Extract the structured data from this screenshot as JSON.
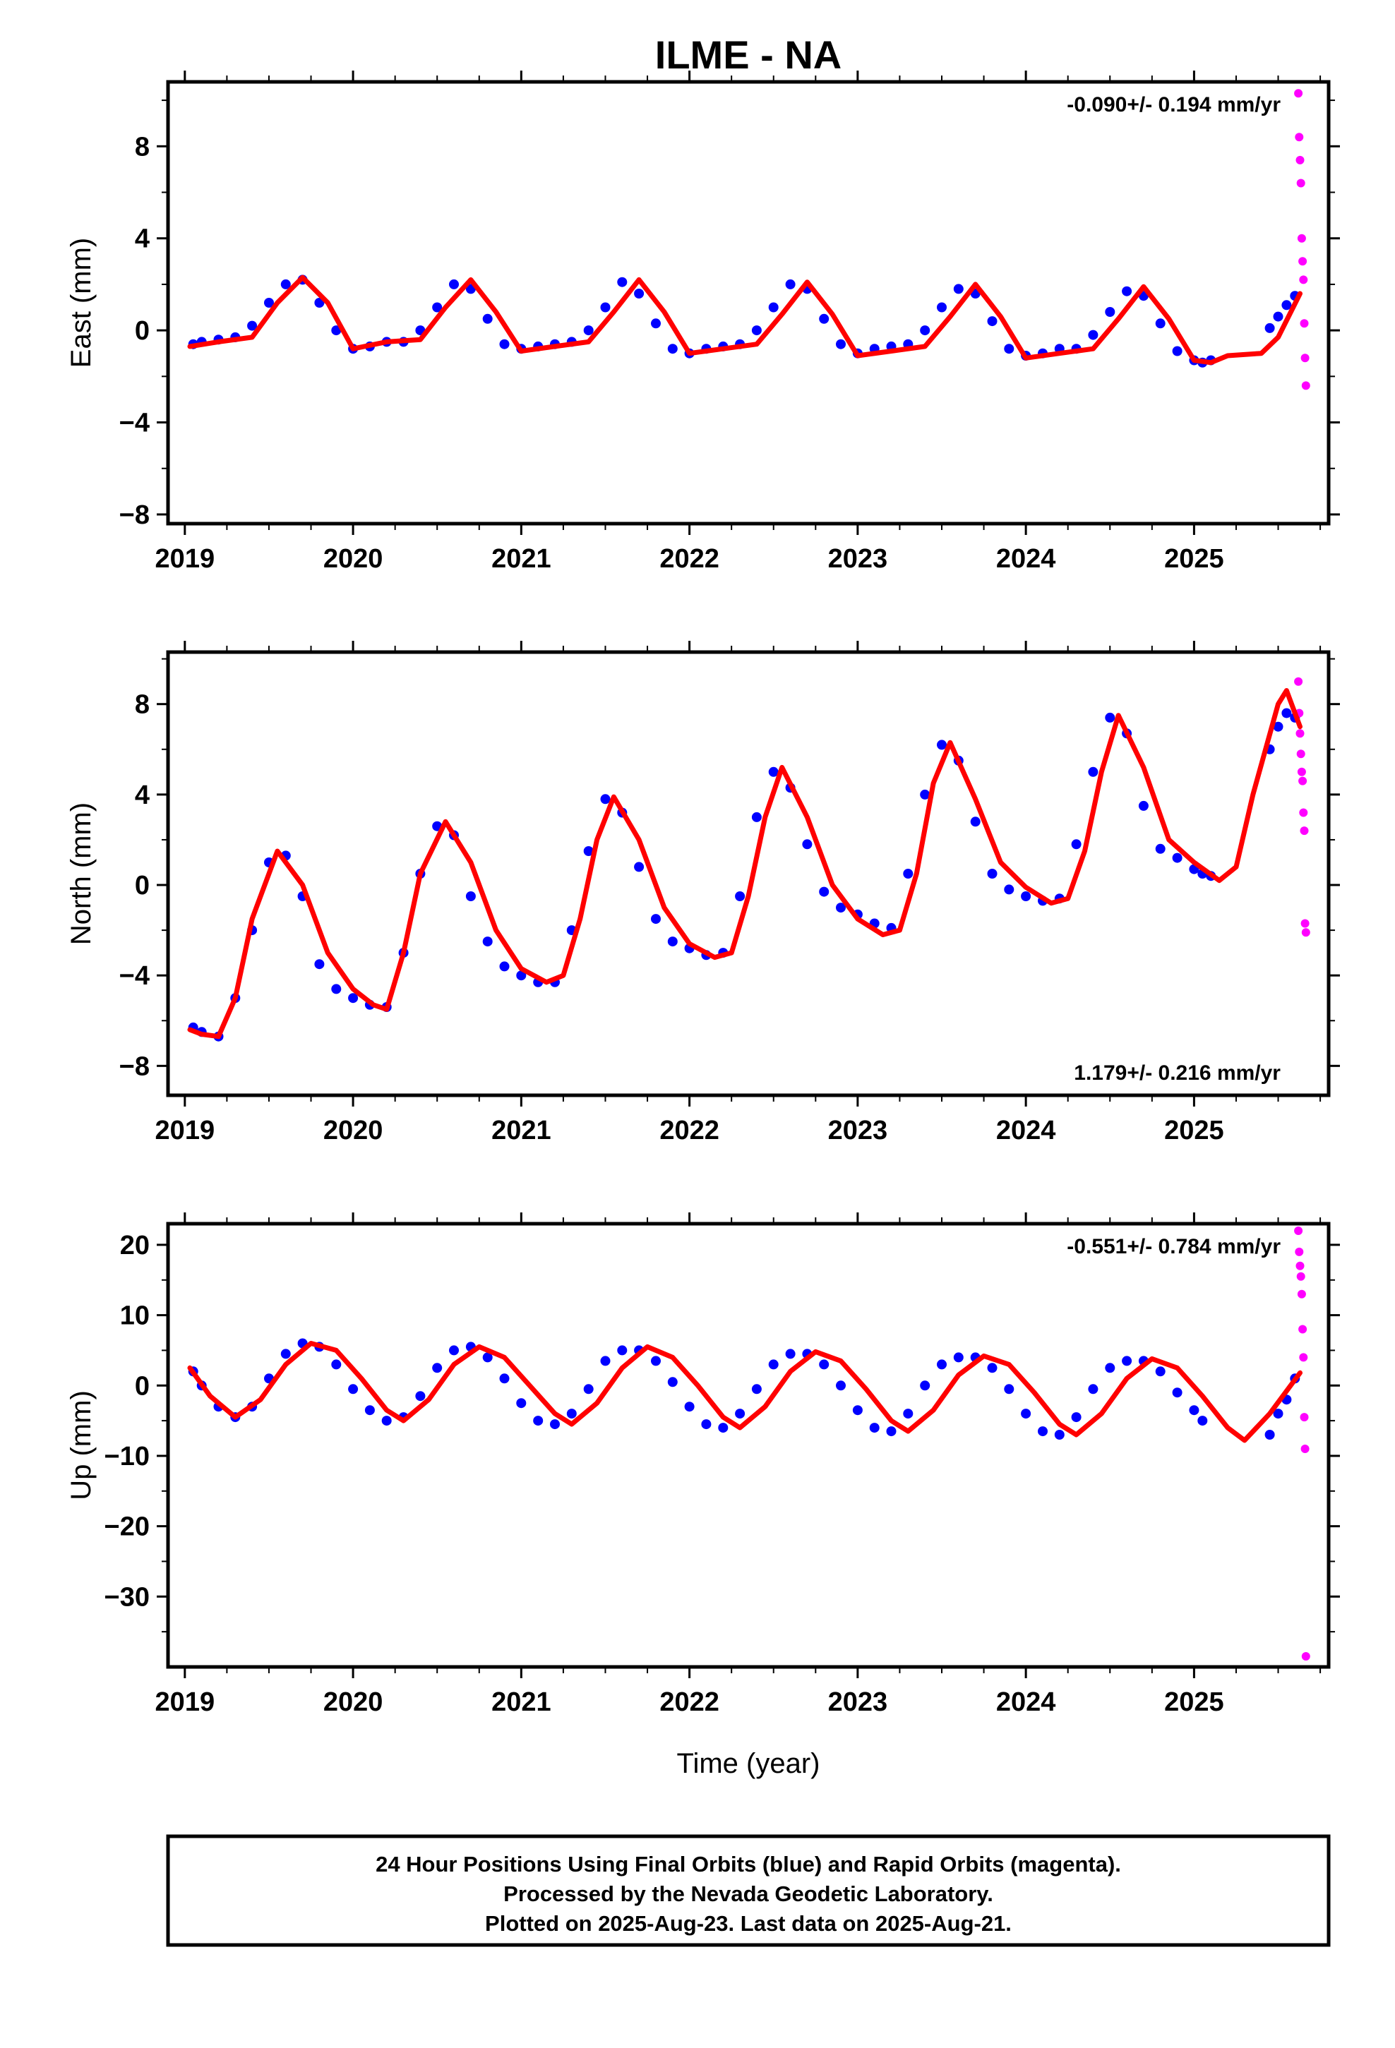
{
  "title": "ILME - NA",
  "xlabel": "Time (year)",
  "footer": {
    "line1": "24 Hour Positions Using Final Orbits (blue) and Rapid Orbits (magenta).",
    "line2": "Processed by the Nevada Geodetic Laboratory.",
    "line3": "Plotted on 2025-Aug-23. Last data on 2025-Aug-21."
  },
  "colors": {
    "final": "#0000ff",
    "rapid": "#ff00ff",
    "model": "#ff0000"
  },
  "chart_data": [
    {
      "type": "scatter",
      "ylabel": "East (mm)",
      "rate": "-0.090+/- 0.194 mm/yr",
      "rate_position": "top-right",
      "xlim": [
        2018.9,
        2025.8
      ],
      "ylim": [
        -8.4,
        10.8
      ],
      "yticks": [
        -8,
        -4,
        0,
        4,
        8
      ],
      "xticks": [
        2019,
        2020,
        2021,
        2022,
        2023,
        2024,
        2025
      ],
      "grid": false,
      "series": [
        {
          "name": "Final Orbits",
          "color": "#0000ff",
          "style": "points",
          "x": [
            2019.05,
            2019.1,
            2019.2,
            2019.3,
            2019.4,
            2019.5,
            2019.6,
            2019.7,
            2019.8,
            2019.9,
            2020.0,
            2020.1,
            2020.2,
            2020.3,
            2020.4,
            2020.5,
            2020.6,
            2020.7,
            2020.8,
            2020.9,
            2021.0,
            2021.1,
            2021.2,
            2021.3,
            2021.4,
            2021.5,
            2021.6,
            2021.7,
            2021.8,
            2021.9,
            2022.0,
            2022.1,
            2022.2,
            2022.3,
            2022.4,
            2022.5,
            2022.6,
            2022.7,
            2022.8,
            2022.9,
            2023.0,
            2023.1,
            2023.2,
            2023.3,
            2023.4,
            2023.5,
            2023.6,
            2023.7,
            2023.8,
            2023.9,
            2024.0,
            2024.1,
            2024.2,
            2024.3,
            2024.4,
            2024.5,
            2024.6,
            2024.7,
            2024.8,
            2024.9,
            2025.0,
            2025.05,
            2025.1,
            2025.45,
            2025.5,
            2025.55,
            2025.6
          ],
          "y": [
            -0.6,
            -0.5,
            -0.4,
            -0.3,
            0.2,
            1.2,
            2.0,
            2.2,
            1.2,
            0.0,
            -0.8,
            -0.7,
            -0.5,
            -0.5,
            0.0,
            1.0,
            2.0,
            1.8,
            0.5,
            -0.6,
            -0.8,
            -0.7,
            -0.6,
            -0.5,
            0.0,
            1.0,
            2.1,
            1.6,
            0.3,
            -0.8,
            -1.0,
            -0.8,
            -0.7,
            -0.6,
            0.0,
            1.0,
            2.0,
            1.8,
            0.5,
            -0.6,
            -1.0,
            -0.8,
            -0.7,
            -0.6,
            0.0,
            1.0,
            1.8,
            1.6,
            0.4,
            -0.8,
            -1.1,
            -1.0,
            -0.8,
            -0.8,
            -0.2,
            0.8,
            1.7,
            1.5,
            0.3,
            -0.9,
            -1.3,
            -1.4,
            -1.3,
            0.1,
            0.6,
            1.1,
            1.5
          ]
        },
        {
          "name": "Rapid Orbits",
          "color": "#ff00ff",
          "style": "points",
          "x": [
            2025.62,
            2025.625,
            2025.63,
            2025.635,
            2025.64,
            2025.645,
            2025.65,
            2025.655,
            2025.66,
            2025.665
          ],
          "y": [
            10.3,
            8.4,
            7.4,
            6.4,
            4.0,
            3.0,
            2.2,
            0.3,
            -1.2,
            -2.4
          ]
        },
        {
          "name": "Model",
          "color": "#ff0000",
          "style": "line",
          "x": [
            2019.03,
            2019.2,
            2019.4,
            2019.55,
            2019.7,
            2019.85,
            2020.0,
            2020.2,
            2020.4,
            2020.55,
            2020.7,
            2020.85,
            2021.0,
            2021.2,
            2021.4,
            2021.55,
            2021.7,
            2021.85,
            2022.0,
            2022.2,
            2022.4,
            2022.55,
            2022.7,
            2022.85,
            2023.0,
            2023.2,
            2023.4,
            2023.55,
            2023.7,
            2023.85,
            2024.0,
            2024.2,
            2024.4,
            2024.55,
            2024.7,
            2024.85,
            2025.0,
            2025.1,
            2025.2,
            2025.4,
            2025.5,
            2025.63
          ],
          "y": [
            -0.7,
            -0.5,
            -0.3,
            1.2,
            2.3,
            1.2,
            -0.8,
            -0.5,
            -0.4,
            1.0,
            2.2,
            0.8,
            -0.9,
            -0.7,
            -0.5,
            0.8,
            2.2,
            0.8,
            -1.0,
            -0.8,
            -0.6,
            0.7,
            2.1,
            0.7,
            -1.1,
            -0.9,
            -0.7,
            0.6,
            2.0,
            0.6,
            -1.2,
            -1.0,
            -0.8,
            0.5,
            1.9,
            0.5,
            -1.3,
            -1.4,
            -1.1,
            -1.0,
            -0.3,
            1.6
          ]
        }
      ]
    },
    {
      "type": "scatter",
      "ylabel": "North (mm)",
      "rate": "1.179+/- 0.216 mm/yr",
      "rate_position": "bottom-right",
      "xlim": [
        2018.9,
        2025.8
      ],
      "ylim": [
        -9.3,
        10.3
      ],
      "yticks": [
        -8,
        -4,
        0,
        4,
        8
      ],
      "xticks": [
        2019,
        2020,
        2021,
        2022,
        2023,
        2024,
        2025
      ],
      "grid": false,
      "series": [
        {
          "name": "Final Orbits",
          "color": "#0000ff",
          "style": "points",
          "x": [
            2019.05,
            2019.1,
            2019.2,
            2019.3,
            2019.4,
            2019.5,
            2019.6,
            2019.7,
            2019.8,
            2019.9,
            2020.0,
            2020.1,
            2020.2,
            2020.3,
            2020.4,
            2020.5,
            2020.6,
            2020.7,
            2020.8,
            2020.9,
            2021.0,
            2021.1,
            2021.2,
            2021.3,
            2021.4,
            2021.5,
            2021.6,
            2021.7,
            2021.8,
            2021.9,
            2022.0,
            2022.1,
            2022.2,
            2022.3,
            2022.4,
            2022.5,
            2022.6,
            2022.7,
            2022.8,
            2022.9,
            2023.0,
            2023.1,
            2023.2,
            2023.3,
            2023.4,
            2023.5,
            2023.6,
            2023.7,
            2023.8,
            2023.9,
            2024.0,
            2024.1,
            2024.2,
            2024.3,
            2024.4,
            2024.5,
            2024.6,
            2024.7,
            2024.8,
            2024.9,
            2025.0,
            2025.05,
            2025.1,
            2025.45,
            2025.5,
            2025.55,
            2025.6
          ],
          "y": [
            -6.3,
            -6.5,
            -6.7,
            -5.0,
            -2.0,
            1.0,
            1.3,
            -0.5,
            -3.5,
            -4.6,
            -5.0,
            -5.3,
            -5.4,
            -3.0,
            0.5,
            2.6,
            2.2,
            -0.5,
            -2.5,
            -3.6,
            -4.0,
            -4.3,
            -4.3,
            -2.0,
            1.5,
            3.8,
            3.2,
            0.8,
            -1.5,
            -2.5,
            -2.8,
            -3.1,
            -3.0,
            -0.5,
            3.0,
            5.0,
            4.3,
            1.8,
            -0.3,
            -1.0,
            -1.3,
            -1.7,
            -1.9,
            0.5,
            4.0,
            6.2,
            5.5,
            2.8,
            0.5,
            -0.2,
            -0.5,
            -0.7,
            -0.6,
            1.8,
            5.0,
            7.4,
            6.7,
            3.5,
            1.6,
            1.2,
            0.7,
            0.5,
            0.4,
            6.0,
            7.0,
            7.6,
            7.4
          ]
        },
        {
          "name": "Rapid Orbits",
          "color": "#ff00ff",
          "style": "points",
          "x": [
            2025.62,
            2025.625,
            2025.63,
            2025.635,
            2025.64,
            2025.645,
            2025.65,
            2025.655,
            2025.66,
            2025.665
          ],
          "y": [
            9.0,
            7.6,
            6.7,
            5.8,
            5.0,
            4.6,
            3.2,
            2.4,
            -1.7,
            -2.1
          ]
        },
        {
          "name": "Model",
          "color": "#ff0000",
          "style": "line",
          "x": [
            2019.03,
            2019.1,
            2019.2,
            2019.3,
            2019.4,
            2019.55,
            2019.7,
            2019.85,
            2020.0,
            2020.12,
            2020.2,
            2020.3,
            2020.4,
            2020.55,
            2020.7,
            2020.85,
            2021.0,
            2021.15,
            2021.25,
            2021.35,
            2021.45,
            2021.55,
            2021.7,
            2021.85,
            2022.0,
            2022.15,
            2022.25,
            2022.35,
            2022.45,
            2022.55,
            2022.7,
            2022.85,
            2023.0,
            2023.15,
            2023.25,
            2023.35,
            2023.45,
            2023.55,
            2023.7,
            2023.85,
            2024.0,
            2024.15,
            2024.25,
            2024.35,
            2024.45,
            2024.55,
            2024.7,
            2024.85,
            2025.0,
            2025.15,
            2025.25,
            2025.35,
            2025.5,
            2025.55,
            2025.63
          ],
          "y": [
            -6.4,
            -6.6,
            -6.7,
            -5.0,
            -1.5,
            1.5,
            0.0,
            -3.0,
            -4.6,
            -5.3,
            -5.5,
            -3.0,
            0.5,
            2.8,
            1.0,
            -2.0,
            -3.7,
            -4.3,
            -4.0,
            -1.5,
            2.0,
            3.9,
            2.0,
            -1.0,
            -2.6,
            -3.2,
            -3.0,
            -0.5,
            3.0,
            5.2,
            3.0,
            0.0,
            -1.5,
            -2.2,
            -2.0,
            0.5,
            4.5,
            6.3,
            3.8,
            1.0,
            -0.1,
            -0.8,
            -0.6,
            1.5,
            5.0,
            7.5,
            5.2,
            2.0,
            1.0,
            0.2,
            0.8,
            4.0,
            8.0,
            8.6,
            7.0
          ]
        }
      ]
    },
    {
      "type": "scatter",
      "ylabel": "Up (mm)",
      "rate": "-0.551+/- 0.784 mm/yr",
      "rate_position": "top-right",
      "xlim": [
        2018.9,
        2025.8
      ],
      "ylim": [
        -40,
        23
      ],
      "yticks": [
        -30,
        -20,
        -10,
        0,
        10,
        20
      ],
      "xticks": [
        2019,
        2020,
        2021,
        2022,
        2023,
        2024,
        2025
      ],
      "grid": false,
      "series": [
        {
          "name": "Final Orbits",
          "color": "#0000ff",
          "style": "points",
          "x": [
            2019.05,
            2019.1,
            2019.2,
            2019.3,
            2019.4,
            2019.5,
            2019.6,
            2019.7,
            2019.8,
            2019.9,
            2020.0,
            2020.1,
            2020.2,
            2020.3,
            2020.4,
            2020.5,
            2020.6,
            2020.7,
            2020.8,
            2020.9,
            2021.0,
            2021.1,
            2021.2,
            2021.3,
            2021.4,
            2021.5,
            2021.6,
            2021.7,
            2021.8,
            2021.9,
            2022.0,
            2022.1,
            2022.2,
            2022.3,
            2022.4,
            2022.5,
            2022.6,
            2022.7,
            2022.8,
            2022.9,
            2023.0,
            2023.1,
            2023.2,
            2023.3,
            2023.4,
            2023.5,
            2023.6,
            2023.7,
            2023.8,
            2023.9,
            2024.0,
            2024.1,
            2024.2,
            2024.3,
            2024.4,
            2024.5,
            2024.6,
            2024.7,
            2024.8,
            2024.9,
            2025.0,
            2025.05,
            2025.45,
            2025.5,
            2025.55,
            2025.6
          ],
          "y": [
            2.0,
            0.0,
            -3.0,
            -4.5,
            -3.0,
            1.0,
            4.5,
            6.0,
            5.5,
            3.0,
            -0.5,
            -3.5,
            -5.0,
            -4.5,
            -1.5,
            2.5,
            5.0,
            5.5,
            4.0,
            1.0,
            -2.5,
            -5.0,
            -5.5,
            -4.0,
            -0.5,
            3.5,
            5.0,
            5.0,
            3.5,
            0.5,
            -3.0,
            -5.5,
            -6.0,
            -4.0,
            -0.5,
            3.0,
            4.5,
            4.5,
            3.0,
            0.0,
            -3.5,
            -6.0,
            -6.5,
            -4.0,
            0.0,
            3.0,
            4.0,
            4.0,
            2.5,
            -0.5,
            -4.0,
            -6.5,
            -7.0,
            -4.5,
            -0.5,
            2.5,
            3.5,
            3.5,
            2.0,
            -1.0,
            -3.5,
            -5.0,
            -7.0,
            -4.0,
            -2.0,
            1.0
          ]
        },
        {
          "name": "Rapid Orbits",
          "color": "#ff00ff",
          "style": "points",
          "x": [
            2025.62,
            2025.625,
            2025.63,
            2025.635,
            2025.64,
            2025.645,
            2025.65,
            2025.655,
            2025.66,
            2025.665
          ],
          "y": [
            22.0,
            19.0,
            17.0,
            15.5,
            13.0,
            8.0,
            4.0,
            -4.5,
            -9.0,
            -38.5
          ]
        },
        {
          "name": "Model",
          "color": "#ff0000",
          "style": "line",
          "x": [
            2019.03,
            2019.15,
            2019.3,
            2019.45,
            2019.6,
            2019.75,
            2019.9,
            2020.05,
            2020.2,
            2020.3,
            2020.45,
            2020.6,
            2020.75,
            2020.9,
            2021.05,
            2021.2,
            2021.3,
            2021.45,
            2021.6,
            2021.75,
            2021.9,
            2022.05,
            2022.2,
            2022.3,
            2022.45,
            2022.6,
            2022.75,
            2022.9,
            2023.05,
            2023.2,
            2023.3,
            2023.45,
            2023.6,
            2023.75,
            2023.9,
            2024.05,
            2024.2,
            2024.3,
            2024.45,
            2024.6,
            2024.75,
            2024.9,
            2025.05,
            2025.2,
            2025.3,
            2025.45,
            2025.63
          ],
          "y": [
            2.5,
            -1.5,
            -4.5,
            -2.0,
            3.0,
            6.0,
            5.0,
            1.0,
            -3.5,
            -5.0,
            -2.0,
            3.0,
            5.5,
            4.0,
            0.0,
            -4.0,
            -5.5,
            -2.5,
            2.5,
            5.5,
            4.0,
            0.0,
            -4.5,
            -6.0,
            -3.0,
            2.0,
            4.8,
            3.5,
            -0.5,
            -5.0,
            -6.5,
            -3.5,
            1.5,
            4.2,
            3.0,
            -1.0,
            -5.5,
            -7.0,
            -4.0,
            1.0,
            3.8,
            2.5,
            -1.5,
            -6.0,
            -7.8,
            -4.0,
            1.8
          ]
        }
      ]
    }
  ]
}
